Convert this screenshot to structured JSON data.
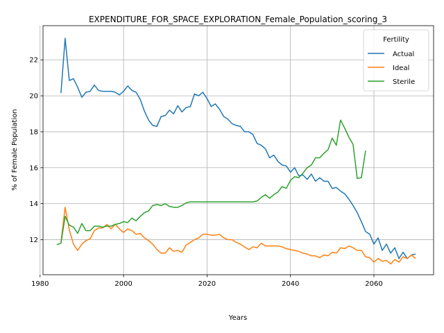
{
  "chart_data": {
    "type": "line",
    "title": "EXPENDITURE_FOR_SPACE_EXPLORATION_Female_Population_scoring_3",
    "xlabel": "Years",
    "ylabel": "% of Female Population",
    "xlim": [
      1980.7,
      2074.3
    ],
    "ylim": [
      10.05,
      23.9
    ],
    "xticks": [
      1980,
      2000,
      2020,
      2040,
      2060
    ],
    "yticks": [
      12,
      14,
      16,
      18,
      20,
      22
    ],
    "grid": true,
    "legend": {
      "title": "Fertility",
      "position": "top-right"
    },
    "series": [
      {
        "name": "Actual",
        "color": "#1f77b4",
        "x": [
          1985,
          1986,
          1987,
          1988,
          1989,
          1990,
          1991,
          1992,
          1993,
          1994,
          1995,
          1996,
          1997,
          1998,
          1999,
          2000,
          2001,
          2002,
          2003,
          2004,
          2005,
          2006,
          2007,
          2008,
          2009,
          2010,
          2011,
          2012,
          2013,
          2014,
          2015,
          2016,
          2017,
          2018,
          2019,
          2020,
          2021,
          2022,
          2023,
          2024,
          2025,
          2026,
          2027,
          2028,
          2029,
          2030,
          2031,
          2032,
          2033,
          2034,
          2035,
          2036,
          2037,
          2038,
          2039,
          2040,
          2041,
          2042,
          2043,
          2044,
          2045,
          2046,
          2047,
          2048,
          2049,
          2050,
          2051,
          2052,
          2053,
          2054,
          2055,
          2056,
          2057,
          2058,
          2059,
          2060,
          2061,
          2062,
          2063,
          2064,
          2065,
          2066,
          2067,
          2068,
          2069,
          2070
        ],
        "values": [
          20.15,
          23.2,
          20.85,
          20.95,
          20.48,
          19.92,
          20.2,
          20.25,
          20.6,
          20.3,
          20.25,
          20.25,
          20.25,
          20.2,
          20.05,
          20.25,
          20.55,
          20.3,
          20.2,
          19.8,
          19.15,
          18.65,
          18.35,
          18.3,
          18.85,
          18.9,
          19.2,
          19.0,
          19.45,
          19.1,
          19.35,
          19.4,
          20.1,
          20.0,
          20.2,
          19.85,
          19.4,
          19.55,
          19.25,
          18.85,
          18.7,
          18.45,
          18.35,
          18.3,
          18.0,
          18.0,
          17.85,
          17.35,
          17.25,
          17.05,
          16.55,
          16.7,
          16.35,
          16.15,
          16.1,
          15.75,
          16.0,
          15.55,
          15.6,
          15.35,
          15.65,
          15.25,
          15.45,
          15.25,
          15.25,
          14.85,
          14.9,
          14.7,
          14.55,
          14.25,
          13.9,
          13.5,
          13.0,
          12.45,
          12.3,
          11.75,
          12.1,
          11.4,
          11.75,
          11.25,
          11.55,
          10.95,
          11.3,
          10.95,
          11.15,
          11.2
        ]
      },
      {
        "name": "Ideal",
        "color": "#ff7f0e",
        "x": [
          1985,
          1986,
          1987,
          1988,
          1989,
          1990,
          1991,
          1992,
          1993,
          1994,
          1995,
          1996,
          1997,
          1998,
          1999,
          2000,
          2001,
          2002,
          2003,
          2004,
          2005,
          2006,
          2007,
          2008,
          2009,
          2010,
          2011,
          2012,
          2013,
          2014,
          2015,
          2016,
          2017,
          2018,
          2019,
          2020,
          2021,
          2022,
          2023,
          2024,
          2025,
          2026,
          2027,
          2028,
          2029,
          2030,
          2031,
          2032,
          2033,
          2034,
          2035,
          2036,
          2037,
          2038,
          2039,
          2040,
          2041,
          2042,
          2043,
          2044,
          2045,
          2046,
          2047,
          2048,
          2049,
          2050,
          2051,
          2052,
          2053,
          2054,
          2055,
          2056,
          2057,
          2058,
          2059,
          2060,
          2061,
          2062,
          2063,
          2064,
          2065,
          2066,
          2067,
          2068,
          2069,
          2070
        ],
        "values": [
          11.85,
          13.8,
          12.55,
          11.75,
          11.4,
          11.75,
          11.95,
          12.05,
          12.5,
          12.65,
          12.65,
          12.85,
          12.6,
          12.85,
          12.6,
          12.4,
          12.6,
          12.5,
          12.3,
          12.35,
          12.1,
          11.95,
          11.75,
          11.45,
          11.25,
          11.25,
          11.55,
          11.35,
          11.4,
          11.3,
          11.7,
          11.85,
          12.0,
          12.1,
          12.3,
          12.3,
          12.25,
          12.25,
          12.3,
          12.1,
          12.0,
          12.0,
          11.85,
          11.75,
          11.6,
          11.45,
          11.6,
          11.55,
          11.8,
          11.65,
          11.65,
          11.65,
          11.65,
          11.6,
          11.5,
          11.45,
          11.4,
          11.35,
          11.25,
          11.2,
          11.1,
          11.1,
          11.0,
          11.15,
          11.1,
          11.3,
          11.25,
          11.55,
          11.5,
          11.65,
          11.55,
          11.4,
          11.4,
          11.05,
          11.0,
          10.75,
          10.95,
          10.8,
          10.85,
          10.65,
          10.9,
          10.75,
          11.05,
          10.95,
          11.15,
          10.95
        ]
      },
      {
        "name": "Sterile",
        "color": "#2ca02c",
        "x": [
          1984,
          1985,
          1986,
          1987,
          1988,
          1989,
          1990,
          1991,
          1992,
          1993,
          1994,
          1995,
          1996,
          1997,
          1998,
          1999,
          2000,
          2001,
          2002,
          2003,
          2004,
          2005,
          2006,
          2007,
          2008,
          2009,
          2010,
          2011,
          2012,
          2013,
          2014,
          2015,
          2016,
          2017,
          2018,
          2019,
          2020,
          2021,
          2022,
          2023,
          2024,
          2025,
          2026,
          2027,
          2028,
          2029,
          2030,
          2031,
          2032,
          2033,
          2034,
          2035,
          2036,
          2037,
          2038,
          2039,
          2040,
          2041,
          2042,
          2043,
          2044,
          2045,
          2046,
          2047,
          2048,
          2049,
          2050,
          2051,
          2052,
          2053,
          2054,
          2055,
          2056,
          2057,
          2058
        ],
        "values": [
          11.72,
          11.8,
          13.3,
          12.8,
          12.7,
          12.35,
          12.9,
          12.5,
          12.5,
          12.75,
          12.75,
          12.7,
          12.75,
          12.75,
          12.85,
          12.9,
          13.0,
          12.95,
          13.2,
          13.05,
          13.3,
          13.5,
          13.6,
          13.9,
          13.95,
          13.9,
          14.0,
          13.85,
          13.8,
          13.8,
          13.9,
          14.05,
          14.1,
          14.1,
          14.1,
          14.1,
          14.1,
          14.1,
          14.1,
          14.1,
          14.1,
          14.1,
          14.1,
          14.1,
          14.1,
          14.1,
          14.1,
          14.1,
          14.15,
          14.35,
          14.5,
          14.3,
          14.5,
          14.65,
          14.95,
          14.85,
          15.3,
          15.5,
          15.45,
          15.7,
          16.0,
          16.15,
          16.55,
          16.55,
          16.8,
          17.0,
          17.65,
          17.25,
          18.65,
          18.2,
          17.7,
          17.3,
          15.4,
          15.45,
          16.95
        ]
      }
    ]
  }
}
